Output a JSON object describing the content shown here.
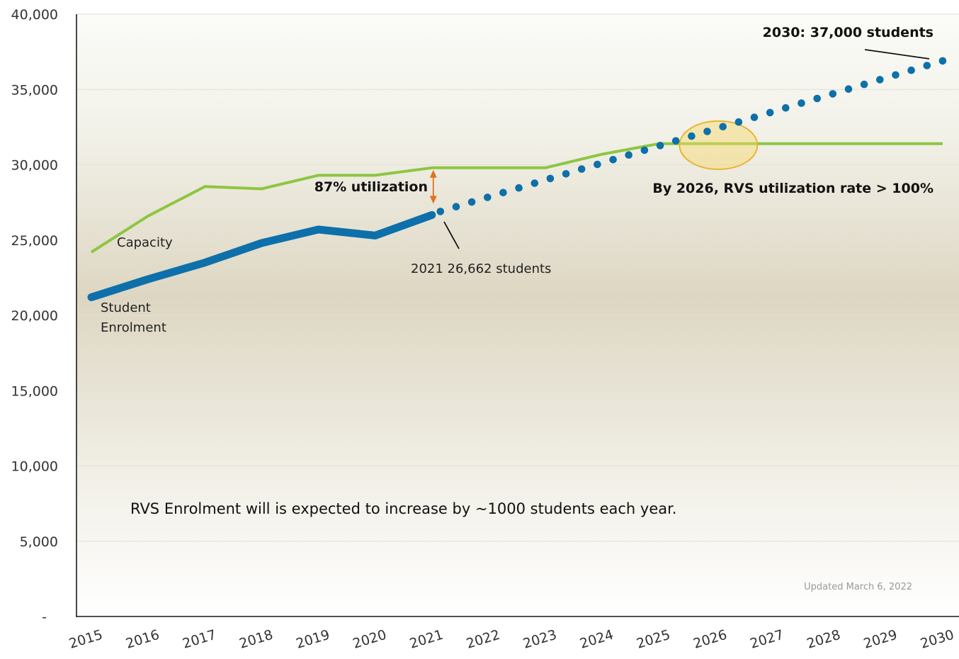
{
  "chart_data": {
    "type": "line",
    "categories": [
      "2015",
      "2016",
      "2017",
      "2018",
      "2019",
      "2020",
      "2021",
      "2022",
      "2023",
      "2024",
      "2025",
      "2026",
      "2027",
      "2028",
      "2029",
      "2030"
    ],
    "ylim": [
      0,
      40000
    ],
    "y_ticks": [
      {
        "value": 0,
        "label": "-"
      },
      {
        "value": 5000,
        "label": "5,000"
      },
      {
        "value": 10000,
        "label": "10,000"
      },
      {
        "value": 15000,
        "label": "15,000"
      },
      {
        "value": 20000,
        "label": "20,000"
      },
      {
        "value": 25000,
        "label": "25,000"
      },
      {
        "value": 30000,
        "label": "30,000"
      },
      {
        "value": 35000,
        "label": "35,000"
      },
      {
        "value": 40000,
        "label": "40,000"
      }
    ],
    "grid": true,
    "series": [
      {
        "name": "Capacity",
        "style": "solid",
        "color": "#8dc641",
        "x": [
          2015,
          2016,
          2017,
          2018,
          2019,
          2020,
          2021,
          2022,
          2023,
          2024,
          2025,
          2026,
          2030
        ],
        "values": [
          24200,
          26600,
          28550,
          28400,
          29300,
          29300,
          29800,
          29800,
          29800,
          30700,
          31400,
          31400,
          31400
        ]
      },
      {
        "name": "Student Enrolment",
        "style": "thick-solid",
        "color": "#0d70aa",
        "x": [
          2015,
          2016,
          2017,
          2018,
          2019,
          2020,
          2021
        ],
        "values": [
          21200,
          22400,
          23500,
          24800,
          25700,
          25300,
          26662
        ]
      },
      {
        "name": "",
        "style": "dotted-projection",
        "color": "#0d70aa",
        "x": [
          2021.15,
          2030
        ],
        "values": [
          26900,
          36900
        ],
        "dot_count": 33
      }
    ],
    "annotations": {
      "capacity_label": "Capacity",
      "enrolment_label_line1": "Student",
      "enrolment_label_line2": "Enrolment",
      "utilization": "87% utilization",
      "students_2021": "2021  26,662 students",
      "students_2030": "2030: 37,000 students",
      "rate_2026": "By 2026, RVS utilization rate > 100%",
      "note": "RVS Enrolment will is expected to increase by ~1000 students each year.",
      "updated": "Updated March 6, 2022"
    },
    "colors": {
      "capacity": "#8dc641",
      "enrolment": "#0d70aa",
      "arrow": "#e0731f",
      "highlight_fill": "#f7d66a",
      "highlight_stroke": "#e8b530"
    }
  }
}
